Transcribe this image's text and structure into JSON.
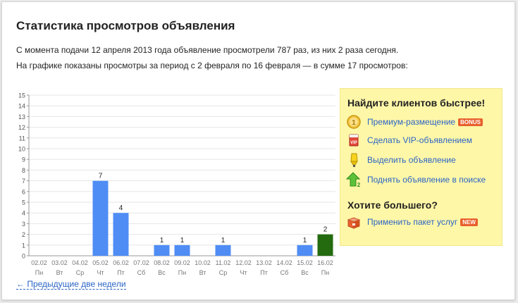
{
  "page": {
    "title": "Статистика просмотров объявления",
    "line1": "С момента подачи 12 апреля 2013 года объявление просмотрели 787 раз, из них 2 раза сегодня.",
    "line2": "На графике показаны просмотры за период с 2 февраля по 16 февраля — в сумме 17 просмотров:",
    "prev_link": "← Предыдущие две недели"
  },
  "promo": {
    "heading": "Найдите клиентов быстрее!",
    "items": [
      {
        "label": "Премиум-размещение",
        "badge": "BONUS",
        "icon": "premium-coin-icon"
      },
      {
        "label": "Сделать VIP-объявлением",
        "icon": "vip-icon"
      },
      {
        "label": "Выделить объявление",
        "icon": "highlighter-icon"
      },
      {
        "label": "Поднять объявление в поиске",
        "icon": "raise-arrow-icon"
      }
    ],
    "more_heading": "Хотите большего?",
    "package": {
      "label": "Применить пакет услуг",
      "badge": "NEW",
      "icon": "package-box-icon"
    }
  },
  "colors": {
    "bar": "#4f8df5",
    "bar_today": "#246b0f",
    "badge": "#e8602c",
    "link": "#2a64c5",
    "promo_bg": "#fff7a8"
  },
  "chart_data": {
    "type": "bar",
    "categories": [
      "02.02",
      "03.02",
      "04.02",
      "05.02",
      "06.02",
      "07.02",
      "08.02",
      "09.02",
      "10.02",
      "11.02",
      "12.02",
      "13.02",
      "14.02",
      "15.02",
      "16.02"
    ],
    "weekdays": [
      "Пн",
      "Вт",
      "Ср",
      "Чт",
      "Пт",
      "Сб",
      "Вс",
      "Пн",
      "Вт",
      "Ср",
      "Чт",
      "Пт",
      "Сб",
      "Вс",
      "Пн"
    ],
    "values": [
      0,
      0,
      0,
      7,
      4,
      0,
      1,
      1,
      0,
      1,
      0,
      0,
      0,
      1,
      2
    ],
    "highlight_index": 14,
    "ylim": [
      0,
      15
    ],
    "yticks": [
      "0",
      "1",
      "2",
      "3",
      "4",
      "5",
      "6",
      "7",
      "8",
      "9",
      "10",
      "11",
      "12",
      "13",
      "14",
      "15"
    ],
    "grid": true,
    "xlabel": "",
    "ylabel": "",
    "title": ""
  }
}
